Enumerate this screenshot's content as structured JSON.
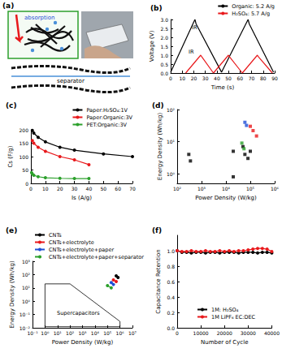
{
  "diagram": {
    "label": "(a)",
    "texts": [
      "absorption",
      "separator"
    ]
  },
  "chart_data": [
    {
      "type": "line",
      "title": "(b)",
      "x_label": "Time (s)",
      "y_label": "Voltage (V)",
      "xlim": [
        0,
        90
      ],
      "xticks": [
        0,
        10,
        20,
        30,
        40,
        50,
        60,
        70,
        80,
        90
      ],
      "ylim": [
        0,
        3.0
      ],
      "yticks": [
        {
          "value": 0,
          "label": "0.0"
        },
        {
          "value": 0.5,
          "label": "0.5"
        },
        {
          "value": 1.0,
          "label": "1.0"
        },
        {
          "value": 1.5,
          "label": "1.5"
        },
        {
          "value": 2.0,
          "label": "2.0"
        },
        {
          "value": 2.5,
          "label": "2.5"
        },
        {
          "value": 3.0,
          "label": "3.0"
        }
      ],
      "annotations": [
        "IR",
        "IR"
      ],
      "grid": false,
      "legend": "upper right",
      "marker": "none",
      "series": [
        {
          "name": "Organic: 5.2 A/g",
          "color": "#000000",
          "x": [
            0,
            21,
            22,
            44,
            67,
            68,
            89
          ],
          "values": [
            0.05,
            3.0,
            2.75,
            0.05,
            3.0,
            2.75,
            0.05
          ]
        },
        {
          "name": "H₂SO₄: 5.7 A/g",
          "color": "#e8191c",
          "x": [
            13,
            26,
            27,
            37,
            50,
            51,
            62,
            75,
            76,
            88
          ],
          "values": [
            0,
            1.0,
            0.9,
            0,
            1.0,
            0.9,
            0,
            1.0,
            0.9,
            0
          ]
        }
      ]
    },
    {
      "type": "line",
      "title": "(c)",
      "x_label": "Is (A/g)",
      "y_label": "Cs (F/g)",
      "xlim": [
        0,
        70
      ],
      "xticks": [
        0,
        10,
        20,
        30,
        40,
        50,
        60,
        70
      ],
      "ylim": [
        0,
        200
      ],
      "yticks": [
        0,
        50,
        100,
        150,
        200
      ],
      "grid": false,
      "legend": "upper right",
      "marker": "circle",
      "series": [
        {
          "name": "Paper:H₂SO₄:1V",
          "color": "#000000",
          "x": [
            1,
            2,
            5,
            10,
            20,
            30,
            50,
            70
          ],
          "values": [
            198,
            188,
            172,
            155,
            135,
            124,
            110,
            100
          ]
        },
        {
          "name": "Paper:Organic:3V",
          "color": "#e8191c",
          "x": [
            1,
            2,
            5,
            10,
            20,
            30,
            40
          ],
          "values": [
            160,
            150,
            135,
            120,
            100,
            88,
            70
          ]
        },
        {
          "name": "PET:Organic:3V",
          "color": "#2ca02c",
          "x": [
            0.5,
            1,
            2,
            5,
            10,
            20,
            30,
            40
          ],
          "values": [
            40,
            35,
            30,
            25,
            21,
            19,
            18,
            18
          ]
        }
      ]
    },
    {
      "type": "scatter",
      "title": "(d)",
      "x_label": "Power Density (W/kg)",
      "y_label": "Energy Density (Wh/kg)",
      "log": true,
      "xlim": [
        100,
        1000000
      ],
      "xticks": [
        {
          "value": 100,
          "label": "10²"
        },
        {
          "value": 1000,
          "label": "10³"
        },
        {
          "value": 10000,
          "label": "10⁴"
        },
        {
          "value": 100000,
          "label": "10⁵"
        },
        {
          "value": 1000000,
          "label": "10⁶"
        }
      ],
      "ylim": [
        0.5,
        100
      ],
      "yticks": [
        {
          "value": 1,
          "label": "10⁰"
        },
        {
          "value": 10,
          "label": "10¹"
        },
        {
          "value": 100,
          "label": "10²"
        }
      ],
      "grid": false,
      "marker": "square",
      "series": [
        {
          "color": "#000000",
          "x": [
            300,
            350,
            20000,
            20000,
            50000,
            60000,
            80000,
            100000
          ],
          "values": [
            4,
            2.5,
            5,
            0.8,
            7,
            4,
            3,
            5
          ]
        },
        {
          "color": "#e8191c",
          "x": [
            100000,
            130000,
            180000
          ],
          "values": [
            30,
            22,
            15
          ]
        },
        {
          "color": "#1f4fd6",
          "x": [
            60000,
            70000
          ],
          "values": [
            40,
            32
          ]
        },
        {
          "color": "#2ca02c",
          "x": [
            45000,
            55000
          ],
          "values": [
            9,
            6
          ]
        }
      ]
    },
    {
      "type": "line",
      "title": "(e)",
      "x_label": "Power Density (W/kg)",
      "y_label": "Energy Density (Wh/kg)",
      "log": true,
      "xlim": [
        0.1,
        10000000
      ],
      "xticks": [
        {
          "value": 0.1,
          "label": "10⁻¹"
        },
        {
          "value": 1,
          "label": "10⁰"
        },
        {
          "value": 10,
          "label": "10¹"
        },
        {
          "value": 100,
          "label": "10²"
        },
        {
          "value": 1000,
          "label": "10³"
        },
        {
          "value": 10000,
          "label": "10⁴"
        },
        {
          "value": 100000,
          "label": "10⁵"
        },
        {
          "value": 1000000,
          "label": "10⁶"
        },
        {
          "value": 10000000,
          "label": "10⁷"
        }
      ],
      "ylim": [
        0.01,
        1000
      ],
      "yticks": [
        {
          "value": 0.01,
          "label": "10⁻²"
        },
        {
          "value": 0.1,
          "label": "10⁻¹"
        },
        {
          "value": 1,
          "label": "10⁰"
        },
        {
          "value": 10,
          "label": "10¹"
        },
        {
          "value": 100,
          "label": "10²"
        },
        {
          "value": 1000,
          "label": "10³"
        }
      ],
      "grid": false,
      "legend": "upper left",
      "marker": "circle",
      "region": {
        "label": "Supercapacitors",
        "x": [
          1,
          100,
          1000000,
          1000000,
          1,
          1
        ],
        "values": [
          20,
          20,
          0.03,
          0.012,
          0.012,
          20
        ]
      },
      "series": [
        {
          "name": "CNTs",
          "color": "#000000",
          "x": [
            500000,
            700000
          ],
          "values": [
            80,
            60
          ]
        },
        {
          "name": "CNTs+electrolyte",
          "color": "#e8191c",
          "x": [
            300000,
            500000
          ],
          "values": [
            40,
            30
          ]
        },
        {
          "name": "CNTs+electrolyte+paper",
          "color": "#1f4fd6",
          "x": [
            200000,
            300000
          ],
          "values": [
            25,
            18
          ]
        },
        {
          "name": "CNTs+electrolyte+paper+separator",
          "color": "#2ca02c",
          "line_style": "dashed",
          "x": [
            100000,
            200000
          ],
          "values": [
            15,
            10
          ]
        }
      ]
    },
    {
      "type": "line",
      "title": "(f)",
      "x_label": "Number of Cycle",
      "y_label": "Capacitance Retention",
      "xlim": [
        0,
        40000
      ],
      "xticks": [
        0,
        10000,
        20000,
        30000,
        40000
      ],
      "ylim": [
        0,
        1.2
      ],
      "yticks": [
        {
          "value": 0,
          "label": "0.0"
        },
        {
          "value": 0.2,
          "label": "0.2"
        },
        {
          "value": 0.4,
          "label": "0.4"
        },
        {
          "value": 0.6,
          "label": "0.6"
        },
        {
          "value": 0.8,
          "label": "0.8"
        },
        {
          "value": 1.0,
          "label": "1.0"
        }
      ],
      "grid": false,
      "legend": "lower center",
      "marker": "circle",
      "series": [
        {
          "name": "1M: H₂SO₄",
          "color": "#000000",
          "x": [
            0,
            2000,
            4000,
            6000,
            8000,
            10000,
            12000,
            14000,
            16000,
            18000,
            20000,
            22000,
            24000,
            26000,
            28000,
            30000,
            32000,
            34000,
            36000,
            38000,
            40000
          ],
          "values": [
            1.0,
            0.98,
            0.98,
            0.97,
            0.98,
            0.98,
            0.97,
            0.98,
            0.98,
            0.97,
            0.98,
            0.98,
            0.98,
            0.97,
            0.98,
            0.98,
            0.98,
            0.97,
            0.98,
            0.98,
            0.97
          ]
        },
        {
          "name": "1M LiPF₆ EC:DEC",
          "color": "#e8191c",
          "x": [
            0,
            2000,
            4000,
            6000,
            8000,
            10000,
            12000,
            14000,
            16000,
            18000,
            20000,
            22000,
            24000,
            26000,
            28000,
            30000,
            32000,
            34000,
            36000,
            38000,
            40000
          ],
          "values": [
            1.0,
            0.99,
            0.99,
            1.0,
            0.99,
            0.99,
            1.0,
            0.99,
            0.99,
            1.0,
            0.99,
            1.0,
            0.99,
            1.0,
            1.0,
            1.01,
            1.02,
            1.03,
            1.03,
            1.02,
            0.99
          ]
        }
      ]
    }
  ]
}
